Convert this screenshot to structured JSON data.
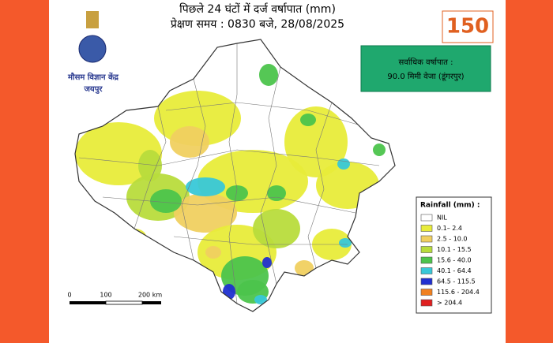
{
  "header": {
    "title": "पिछले 24 घंटों में दर्ज वर्षापात (mm)",
    "subtitle": "प्रेक्षण समय : 0830 बजे, 28/08/2025"
  },
  "logo": {
    "name": "मौसम विज्ञान केंद्र",
    "city": "जयपुर"
  },
  "badge": "150",
  "highlight": {
    "label": "सर्वाधिक वर्षापात :",
    "value": "90.0 मिमी वेजा (डूंगरपुर)"
  },
  "legend": {
    "title": "Rainfall (mm) :",
    "items": [
      {
        "label": "NIL",
        "color": "#ffffff"
      },
      {
        "label": "0.1– 2.4",
        "color": "#e8ec3a"
      },
      {
        "label": "2.5 - 10.0",
        "color": "#f0d060"
      },
      {
        "label": "10.1 - 15.5",
        "color": "#b8dc3c"
      },
      {
        "label": "15.6 - 40.0",
        "color": "#4cc44c"
      },
      {
        "label": "40.1 - 64.4",
        "color": "#38c8d8"
      },
      {
        "label": "64.5 - 115.5",
        "color": "#2030d0"
      },
      {
        "label": "115.6 - 204.4",
        "color": "#f08020"
      },
      {
        "label": "> 204.4",
        "color": "#e02020"
      }
    ]
  },
  "scale_bar": {
    "ticks": [
      "0",
      "100",
      "200 km"
    ]
  }
}
